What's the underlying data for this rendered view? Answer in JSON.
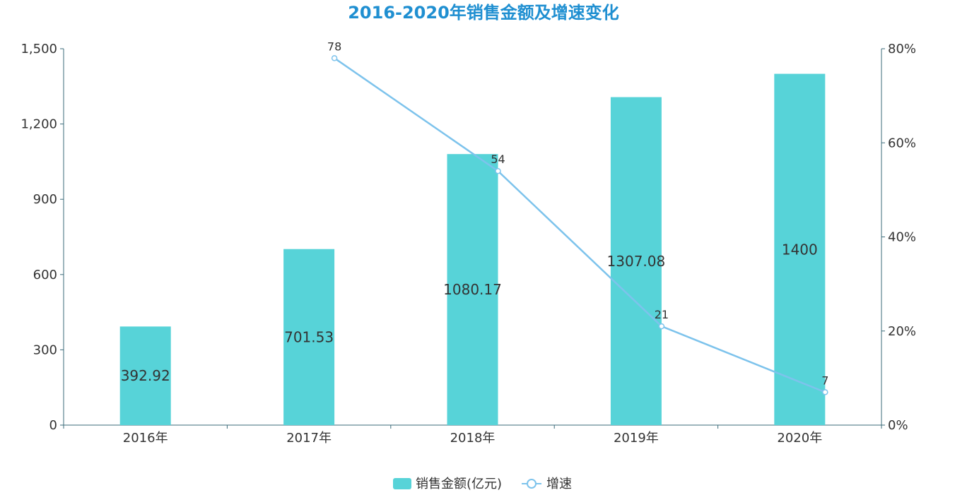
{
  "chart_data": {
    "type": "bar",
    "title": "2016-2020年销售金额及增速变化",
    "categories": [
      "2016年",
      "2017年",
      "2018年",
      "2019年",
      "2020年"
    ],
    "series": [
      {
        "name": "销售金额(亿元)",
        "type": "bar",
        "axis": "left",
        "values": [
          392.92,
          701.53,
          1080.17,
          1307.08,
          1400
        ]
      },
      {
        "name": "增速",
        "type": "line",
        "axis": "right",
        "values": [
          null,
          78,
          54,
          21,
          7
        ]
      }
    ],
    "y_left": {
      "ticks": [
        "0",
        "300",
        "600",
        "900",
        "1,200",
        "1,500"
      ],
      "ylim": [
        0,
        1500
      ]
    },
    "y_right": {
      "ticks": [
        "0%",
        "20%",
        "40%",
        "60%",
        "80%"
      ],
      "ylim": [
        0,
        80
      ]
    },
    "legend": "bottom-center",
    "grid": false
  },
  "colors": {
    "bar": "#57d3d8",
    "line": "#7dc3ec",
    "title": "#1f8fd1",
    "axis": "#3b6b7a"
  }
}
